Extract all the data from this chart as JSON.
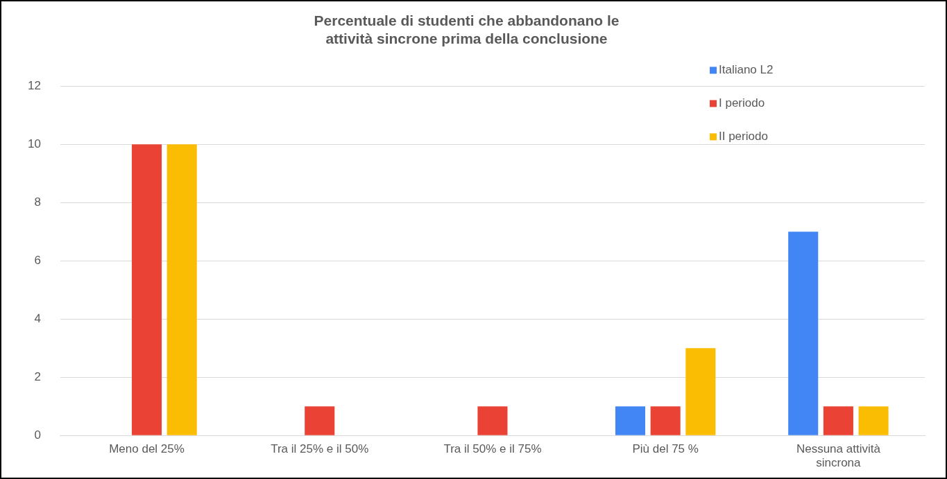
{
  "chart_data": {
    "type": "bar",
    "title": "Percentuale di studenti che abbandonano le\nattività sincrone prima della conclusione",
    "categories": [
      "Meno del 25%",
      "Tra il 25% e il 50%",
      "Tra il 50% e il 75%",
      "Più del 75 %",
      "Nessuna attività sincrona"
    ],
    "series": [
      {
        "name": "Italiano L2",
        "color": "#4285f4",
        "values": [
          0,
          0,
          0,
          1,
          7
        ]
      },
      {
        "name": "I periodo",
        "color": "#ea4335",
        "values": [
          10,
          1,
          1,
          1,
          1
        ]
      },
      {
        "name": "II periodo",
        "color": "#fbbc04",
        "values": [
          10,
          0,
          0,
          3,
          1
        ]
      }
    ],
    "ylim": [
      0,
      12
    ],
    "yticks": [
      0,
      2,
      4,
      6,
      8,
      10,
      12
    ],
    "grid": "y",
    "legend": "top right"
  }
}
